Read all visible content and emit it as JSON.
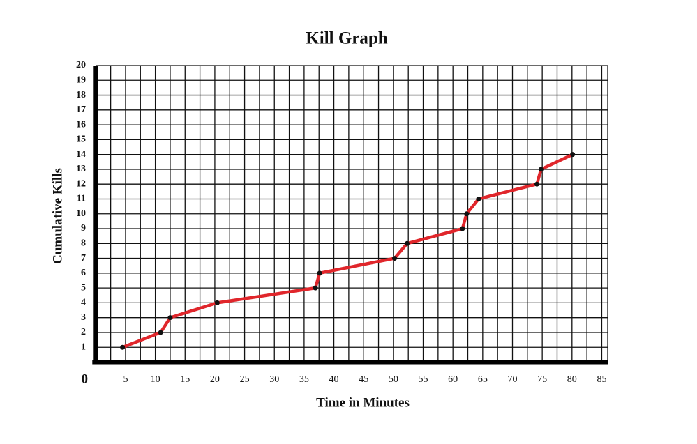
{
  "chart_data": {
    "type": "line",
    "title": "Kill Graph",
    "x_label": "Time in Minutes",
    "y_label": "Cumulative Kills",
    "x": [
      4.5,
      10.9,
      12.5,
      20.4,
      36.9,
      37.6,
      50.2,
      52.3,
      61.6,
      62.3,
      64.3,
      74.1,
      74.8,
      80.1
    ],
    "series": [
      {
        "name": "Cumulative Kills",
        "color": "#e0262b",
        "values": [
          1,
          2,
          3,
          4,
          5,
          6,
          7,
          8,
          9,
          10,
          11,
          12,
          13,
          14
        ]
      }
    ],
    "xlim": [
      0,
      86
    ],
    "ylim": [
      0,
      20
    ],
    "xticks": [
      0,
      5,
      10,
      15,
      20,
      25,
      30,
      35,
      40,
      45,
      50,
      55,
      60,
      65,
      70,
      75,
      80,
      85
    ],
    "yticks": [
      1,
      2,
      3,
      4,
      5,
      6,
      7,
      8,
      9,
      10,
      11,
      12,
      13,
      14,
      15,
      16,
      17,
      18,
      19,
      20
    ],
    "grid": true,
    "marker_color": "#111111"
  }
}
